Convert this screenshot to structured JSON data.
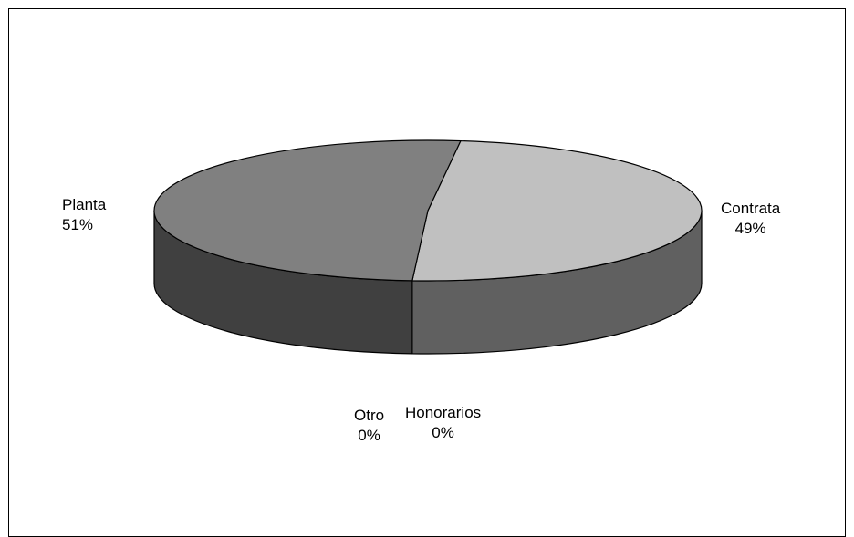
{
  "chart_data": {
    "type": "pie",
    "three_d": true,
    "title": "",
    "legend": "none",
    "slices": [
      {
        "name": "Contrata",
        "value": 49,
        "label": "49%",
        "top_color": "#c0c0c0",
        "side_color": "#606060"
      },
      {
        "name": "Planta",
        "value": 51,
        "label": "51%",
        "top_color": "#808080",
        "side_color": "#404040"
      },
      {
        "name": "Honorarios",
        "value": 0,
        "label": "0%",
        "top_color": "#c0c0c0",
        "side_color": "#606060"
      },
      {
        "name": "Otro",
        "value": 0,
        "label": "0%",
        "top_color": "#808080",
        "side_color": "#404040"
      }
    ],
    "outline_color": "#000000"
  }
}
